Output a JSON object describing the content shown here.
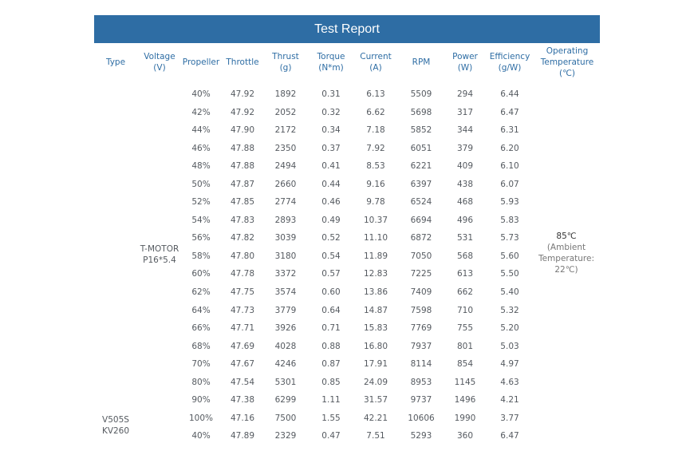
{
  "title": "Test Report",
  "headers": [
    {
      "key": "type",
      "label": "Type"
    },
    {
      "key": "voltage",
      "label": "Voltage\n(V)"
    },
    {
      "key": "propeller",
      "label": "Propeller"
    },
    {
      "key": "throttle",
      "label": "Throttle"
    },
    {
      "key": "thrust",
      "label": "Thrust\n(g)"
    },
    {
      "key": "torque",
      "label": "Torque\n(N*m)"
    },
    {
      "key": "current",
      "label": "Current\n(A)"
    },
    {
      "key": "rpm",
      "label": "RPM"
    },
    {
      "key": "power",
      "label": "Power\n(W)"
    },
    {
      "key": "efficiency",
      "label": "Efficiency\n(g/W)"
    },
    {
      "key": "temperature",
      "label": "Operating\nTemperature\n(℃)"
    }
  ],
  "propeller_label": "T-MOTOR\nP16*5.4",
  "type_label": "V505S\nKV260",
  "temperature": {
    "main": "85℃",
    "sub": "(Ambient\nTemperature:\n22℃)"
  },
  "rows": [
    [
      "40%",
      "47.92",
      "1892",
      "0.31",
      "6.13",
      "5509",
      "294",
      "6.44"
    ],
    [
      "42%",
      "47.92",
      "2052",
      "0.32",
      "6.62",
      "5698",
      "317",
      "6.47"
    ],
    [
      "44%",
      "47.90",
      "2172",
      "0.34",
      "7.18",
      "5852",
      "344",
      "6.31"
    ],
    [
      "46%",
      "47.88",
      "2350",
      "0.37",
      "7.92",
      "6051",
      "379",
      "6.20"
    ],
    [
      "48%",
      "47.88",
      "2494",
      "0.41",
      "8.53",
      "6221",
      "409",
      "6.10"
    ],
    [
      "50%",
      "47.87",
      "2660",
      "0.44",
      "9.16",
      "6397",
      "438",
      "6.07"
    ],
    [
      "52%",
      "47.85",
      "2774",
      "0.46",
      "9.78",
      "6524",
      "468",
      "5.93"
    ],
    [
      "54%",
      "47.83",
      "2893",
      "0.49",
      "10.37",
      "6694",
      "496",
      "5.83"
    ],
    [
      "56%",
      "47.82",
      "3039",
      "0.52",
      "11.10",
      "6872",
      "531",
      "5.73"
    ],
    [
      "58%",
      "47.80",
      "3180",
      "0.54",
      "11.89",
      "7050",
      "568",
      "5.60"
    ],
    [
      "60%",
      "47.78",
      "3372",
      "0.57",
      "12.83",
      "7225",
      "613",
      "5.50"
    ],
    [
      "62%",
      "47.75",
      "3574",
      "0.60",
      "13.86",
      "7409",
      "662",
      "5.40"
    ],
    [
      "64%",
      "47.73",
      "3779",
      "0.64",
      "14.87",
      "7598",
      "710",
      "5.32"
    ],
    [
      "66%",
      "47.71",
      "3926",
      "0.71",
      "15.83",
      "7769",
      "755",
      "5.20"
    ],
    [
      "68%",
      "47.69",
      "4028",
      "0.88",
      "16.80",
      "7937",
      "801",
      "5.03"
    ],
    [
      "70%",
      "47.67",
      "4246",
      "0.87",
      "17.91",
      "8114",
      "854",
      "4.97"
    ],
    [
      "80%",
      "47.54",
      "5301",
      "0.85",
      "24.09",
      "8953",
      "1145",
      "4.63"
    ],
    [
      "90%",
      "47.38",
      "6299",
      "1.11",
      "31.57",
      "9737",
      "1496",
      "4.21"
    ],
    [
      "100%",
      "47.16",
      "7500",
      "1.55",
      "42.21",
      "10606",
      "1990",
      "3.77"
    ],
    [
      "40%",
      "47.89",
      "2329",
      "0.47",
      "7.51",
      "5293",
      "360",
      "6.47"
    ]
  ]
}
